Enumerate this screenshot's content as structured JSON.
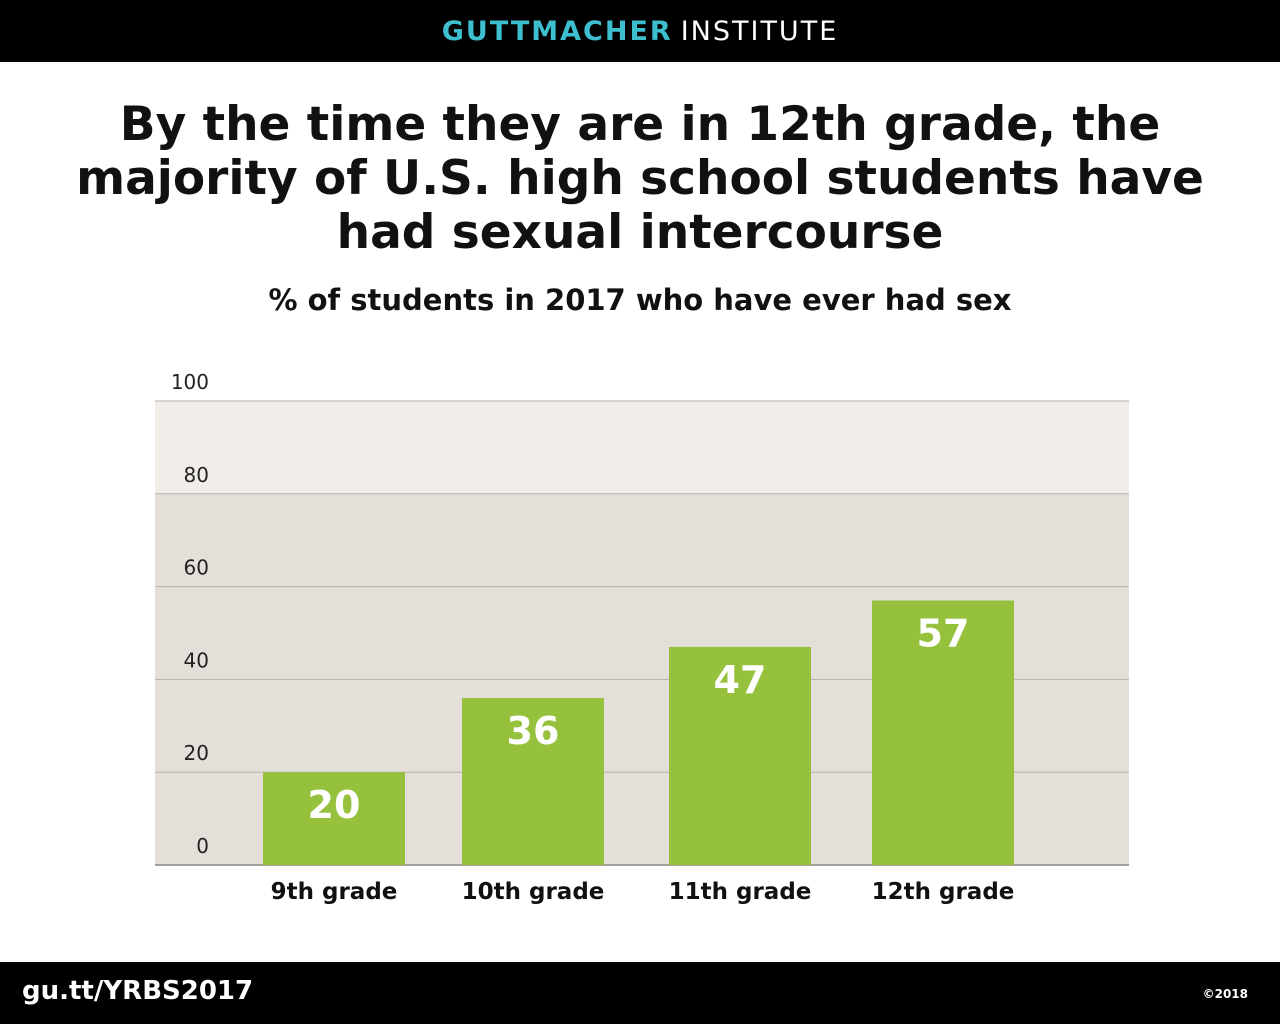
{
  "header": {
    "brand_accent": "GUTTMACHER",
    "brand_rest": "INSTITUTE"
  },
  "footer": {
    "url": "gu.tt/YRBS2017",
    "copyright": "©2018"
  },
  "colors": {
    "bar": "#95c13d",
    "brand_accent": "#3dbfcf",
    "band_light": "#f1eeea",
    "band_dark": "#e5dfda"
  },
  "chart_data": {
    "type": "bar",
    "title": "By the time they are in 12th grade, the majority of U.S. high school students have had sexual intercourse",
    "subtitle": "% of students in 2017 who have ever had sex",
    "categories": [
      "9th grade",
      "10th grade",
      "11th grade",
      "12th grade"
    ],
    "values": [
      20,
      36,
      47,
      57
    ],
    "data_labels": [
      "20",
      "36",
      "47",
      "57"
    ],
    "y_ticks": [
      0,
      20,
      40,
      60,
      80,
      100
    ],
    "y_tick_labels": [
      "0",
      "20",
      "40",
      "60",
      "80",
      "100"
    ],
    "ylim": [
      0,
      100
    ],
    "grid": true,
    "legend": "none"
  }
}
